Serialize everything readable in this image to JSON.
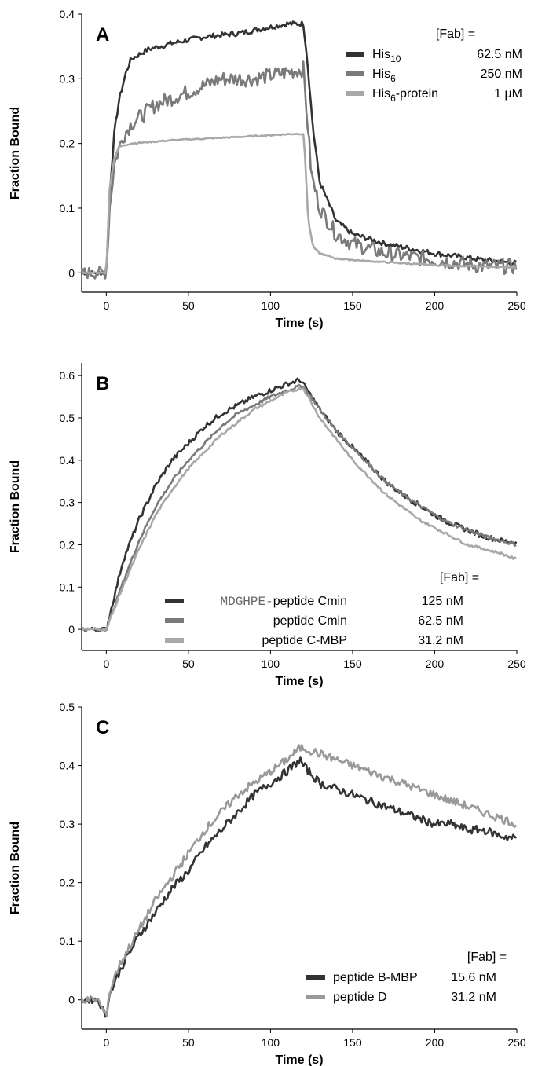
{
  "figure": {
    "background": "#ffffff",
    "axis_color": "#000000"
  },
  "chart_data": [
    {
      "type": "line",
      "panel_label": "A",
      "xlabel": "Time (s)",
      "ylabel": "Fraction Bound",
      "xlim": [
        -15,
        250
      ],
      "ylim": [
        -0.03,
        0.4
      ],
      "xticks": [
        0,
        50,
        100,
        150,
        200,
        250
      ],
      "xtick_labels": [
        "0",
        "50",
        "100",
        "150",
        "200",
        "250"
      ],
      "yticks": [
        0,
        0.1,
        0.2,
        0.3,
        0.4
      ],
      "ytick_labels": [
        "0",
        "0.1",
        "0.2",
        "0.3",
        "0.4"
      ],
      "legend_position": "top-right",
      "legend_header": "[Fab] =",
      "series": [
        {
          "name_main": "His",
          "name_sub": "10",
          "name_tail": "",
          "conc": "62.5 nM",
          "color": "#333333",
          "x": [
            -15,
            0,
            2,
            5,
            8,
            12,
            15,
            25,
            40,
            60,
            80,
            100,
            110,
            120,
            122,
            126,
            130,
            140,
            150,
            170,
            200,
            230,
            250
          ],
          "y": [
            0.0,
            0.0,
            0.12,
            0.22,
            0.27,
            0.31,
            0.33,
            0.345,
            0.355,
            0.365,
            0.37,
            0.38,
            0.385,
            0.385,
            0.34,
            0.22,
            0.14,
            0.08,
            0.06,
            0.045,
            0.03,
            0.02,
            0.015
          ],
          "noise": 0.004
        },
        {
          "name_main": "His",
          "name_sub": "6",
          "name_tail": "",
          "conc": "250 nM",
          "color": "#7a7a7a",
          "x": [
            -15,
            0,
            2,
            5,
            10,
            15,
            30,
            50,
            70,
            90,
            110,
            120,
            122,
            125,
            130,
            140,
            150,
            170,
            200,
            230,
            250
          ],
          "y": [
            0.0,
            0.0,
            0.1,
            0.17,
            0.21,
            0.23,
            0.26,
            0.28,
            0.3,
            0.3,
            0.31,
            0.315,
            0.25,
            0.15,
            0.1,
            0.06,
            0.045,
            0.03,
            0.02,
            0.01,
            0.01
          ],
          "noise": 0.012
        },
        {
          "name_main": "His",
          "name_sub": "6",
          "name_tail": "-protein",
          "conc": "1 µM",
          "color": "#a8a8a8",
          "x": [
            -15,
            0,
            2,
            5,
            8,
            15,
            40,
            80,
            115,
            120,
            121,
            123,
            126,
            130,
            140,
            160,
            200,
            250
          ],
          "y": [
            0.0,
            0.0,
            0.13,
            0.18,
            0.195,
            0.2,
            0.205,
            0.21,
            0.215,
            0.215,
            0.18,
            0.08,
            0.04,
            0.03,
            0.022,
            0.018,
            0.012,
            0.008
          ],
          "noise": 0.001
        }
      ]
    },
    {
      "type": "line",
      "panel_label": "B",
      "xlabel": "Time (s)",
      "ylabel": "Fraction Bound",
      "xlim": [
        -15,
        250
      ],
      "ylim": [
        -0.05,
        0.63
      ],
      "xticks": [
        0,
        50,
        100,
        150,
        200,
        250
      ],
      "xtick_labels": [
        "0",
        "50",
        "100",
        "150",
        "200",
        "250"
      ],
      "yticks": [
        0,
        0.1,
        0.2,
        0.3,
        0.4,
        0.5,
        0.6
      ],
      "ytick_labels": [
        "0",
        "0.1",
        "0.2",
        "0.3",
        "0.4",
        "0.5",
        "0.6"
      ],
      "legend_position": "bottom-right",
      "legend_header": "[Fab] =",
      "series": [
        {
          "name_prefix": "MDGHPE-",
          "name": "peptide Cmin",
          "conc": "125 nM",
          "color": "#333333",
          "x": [
            -15,
            0,
            10,
            20,
            30,
            40,
            50,
            60,
            70,
            80,
            90,
            100,
            110,
            118,
            120,
            130,
            140,
            150,
            160,
            170,
            180,
            190,
            200,
            210,
            220,
            230,
            240,
            250
          ],
          "y": [
            0.0,
            0.0,
            0.16,
            0.26,
            0.34,
            0.4,
            0.44,
            0.48,
            0.51,
            0.53,
            0.55,
            0.565,
            0.58,
            0.59,
            0.58,
            0.52,
            0.47,
            0.43,
            0.39,
            0.35,
            0.32,
            0.295,
            0.27,
            0.25,
            0.235,
            0.22,
            0.21,
            0.205
          ],
          "noise": 0.006
        },
        {
          "name": "peptide Cmin",
          "conc": "62.5 nM",
          "color": "#7a7a7a",
          "x": [
            -15,
            0,
            10,
            20,
            30,
            40,
            50,
            60,
            70,
            80,
            90,
            100,
            110,
            118,
            120,
            130,
            140,
            150,
            160,
            170,
            180,
            190,
            200,
            210,
            220,
            230,
            240,
            250
          ],
          "y": [
            0.0,
            0.0,
            0.11,
            0.21,
            0.29,
            0.35,
            0.4,
            0.44,
            0.48,
            0.51,
            0.53,
            0.55,
            0.565,
            0.575,
            0.575,
            0.52,
            0.47,
            0.43,
            0.39,
            0.35,
            0.32,
            0.295,
            0.27,
            0.25,
            0.235,
            0.22,
            0.21,
            0.2
          ],
          "noise": 0.004
        },
        {
          "name": "peptide C-MBP",
          "conc": "31.2 nM",
          "color": "#a8a8a8",
          "x": [
            -15,
            0,
            10,
            20,
            30,
            40,
            50,
            60,
            70,
            80,
            90,
            100,
            110,
            118,
            120,
            130,
            140,
            150,
            160,
            170,
            180,
            190,
            200,
            210,
            220,
            230,
            240,
            250
          ],
          "y": [
            0.0,
            0.0,
            0.1,
            0.19,
            0.27,
            0.33,
            0.38,
            0.42,
            0.46,
            0.49,
            0.52,
            0.54,
            0.56,
            0.57,
            0.57,
            0.5,
            0.45,
            0.4,
            0.36,
            0.32,
            0.29,
            0.26,
            0.24,
            0.22,
            0.2,
            0.19,
            0.18,
            0.165
          ],
          "noise": 0.003
        }
      ]
    },
    {
      "type": "line",
      "panel_label": "C",
      "xlabel": "Time (s)",
      "ylabel": "Fraction Bound",
      "xlim": [
        -15,
        250
      ],
      "ylim": [
        -0.05,
        0.5
      ],
      "xticks": [
        0,
        50,
        100,
        150,
        200,
        250
      ],
      "xtick_labels": [
        "0",
        "50",
        "100",
        "150",
        "200",
        "250"
      ],
      "yticks": [
        0,
        0.1,
        0.2,
        0.3,
        0.4,
        0.5
      ],
      "ytick_labels": [
        "0",
        "0.1",
        "0.2",
        "0.3",
        "0.4",
        "0.5"
      ],
      "legend_position": "bottom-right",
      "legend_header": "[Fab] =",
      "series": [
        {
          "name": "peptide B-MBP",
          "conc": "15.6 nM",
          "color": "#333333",
          "x": [
            -15,
            -5,
            0,
            1,
            5,
            10,
            20,
            30,
            40,
            50,
            60,
            70,
            80,
            90,
            100,
            110,
            118,
            120,
            130,
            140,
            150,
            160,
            170,
            180,
            190,
            200,
            210,
            220,
            230,
            240,
            250
          ],
          "y": [
            0.0,
            0.0,
            -0.03,
            0.0,
            0.03,
            0.06,
            0.11,
            0.15,
            0.19,
            0.22,
            0.26,
            0.29,
            0.32,
            0.35,
            0.37,
            0.39,
            0.41,
            0.4,
            0.37,
            0.36,
            0.35,
            0.34,
            0.33,
            0.32,
            0.31,
            0.3,
            0.3,
            0.29,
            0.29,
            0.28,
            0.275
          ],
          "noise": 0.007
        },
        {
          "name": "peptide D",
          "conc": "31.2 nM",
          "color": "#999999",
          "x": [
            -15,
            -5,
            0,
            1,
            5,
            10,
            20,
            30,
            40,
            50,
            60,
            70,
            80,
            90,
            100,
            110,
            118,
            120,
            130,
            140,
            150,
            160,
            170,
            180,
            190,
            200,
            210,
            220,
            230,
            240,
            250
          ],
          "y": [
            0.0,
            0.0,
            -0.03,
            0.0,
            0.04,
            0.07,
            0.12,
            0.17,
            0.21,
            0.25,
            0.29,
            0.32,
            0.35,
            0.37,
            0.39,
            0.41,
            0.43,
            0.43,
            0.42,
            0.41,
            0.4,
            0.39,
            0.38,
            0.37,
            0.36,
            0.35,
            0.34,
            0.33,
            0.32,
            0.31,
            0.3
          ],
          "noise": 0.007
        }
      ]
    }
  ]
}
